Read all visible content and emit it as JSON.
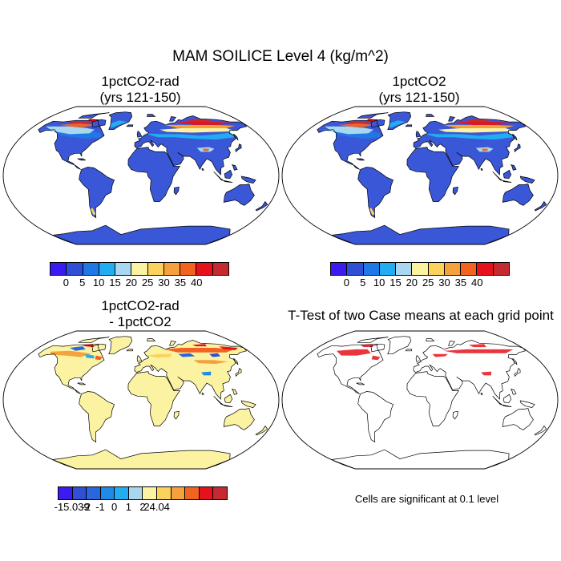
{
  "figure": {
    "title": "MAM SOILICE Level 4 (kg/m^2)"
  },
  "panels": [
    {
      "title_line1": "1pctCO2-rad",
      "title_line2": "(yrs 121-150)"
    },
    {
      "title_line1": "1pctCO2",
      "title_line2": "(yrs 121-150)"
    },
    {
      "title_line1": "1pctCO2-rad",
      "title_line2": "- 1pctCO2"
    },
    {
      "title_line1": "T-Test of two Case means at each grid point",
      "title_line2": ""
    }
  ],
  "colorbar_abs": {
    "labels": [
      "0",
      "5",
      "10",
      "15",
      "20",
      "25",
      "30",
      "35",
      "40"
    ],
    "colors": [
      "#3b1cf0",
      "#2e4fd6",
      "#1f78e6",
      "#21aef0",
      "#a9d7ef",
      "#fbf3a1",
      "#fbd25b",
      "#f6a23c",
      "#f26322",
      "#e6121b",
      "#c52a31"
    ]
  },
  "colorbar_diff": {
    "labels": [
      "-15.039",
      "-2",
      "-1",
      "0",
      "1",
      "2",
      "24.04"
    ],
    "colors": [
      "#3b1cf0",
      "#2e4fd6",
      "#2a66de",
      "#1f8ae8",
      "#21aef0",
      "#a9d7ef",
      "#fbf3a1",
      "#fbd25b",
      "#f6a23c",
      "#f26322",
      "#e6121b",
      "#c52a31"
    ]
  },
  "significance_note": "Cells are significant at 0.1 level",
  "fill_colors": {
    "ocean": "#ffffff",
    "land_abs": "#3a57d8",
    "land_diff": "#fbf3a1",
    "significant": "#e6121b"
  }
}
